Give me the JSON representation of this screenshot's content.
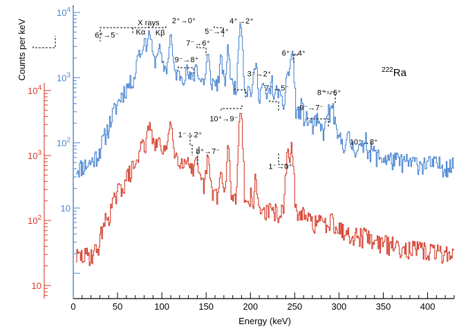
{
  "chart_data": {
    "type": "line",
    "style": "step histogram",
    "isotope": {
      "mass": "222",
      "symbol": "Ra"
    },
    "xlabel": "Energy (keV)",
    "ylabel": "Counts per keV",
    "xlim": [
      0,
      430
    ],
    "x_ticks": [
      "0",
      "50",
      "100",
      "150",
      "200",
      "250",
      "300",
      "350",
      "400"
    ],
    "colors": {
      "blue": "#4a86d1",
      "red": "#d43b2a",
      "axis": "#000000"
    },
    "blue_axis": {
      "color": "#4a86d1",
      "decade_labels": [
        {
          "base": "10",
          "exp": "4"
        },
        {
          "base": "10",
          "exp": "3"
        },
        {
          "base": "10",
          "exp": "2"
        },
        {
          "base": "10",
          "exp": ""
        }
      ]
    },
    "red_axis": {
      "color": "#d43b2a",
      "decade_labels": [
        {
          "base": "10",
          "exp": "4"
        },
        {
          "base": "10",
          "exp": "3"
        },
        {
          "base": "10",
          "exp": "2"
        },
        {
          "base": "10",
          "exp": ""
        }
      ]
    },
    "series": [
      {
        "name": "blue",
        "axis": "blue",
        "color": "#4a86d1",
        "noise_seed": 11,
        "background": [
          [
            3,
            40
          ],
          [
            12,
            45
          ],
          [
            20,
            50
          ],
          [
            28,
            68
          ],
          [
            35,
            120
          ],
          [
            40,
            180
          ],
          [
            45,
            280
          ],
          [
            50,
            400
          ],
          [
            55,
            560
          ],
          [
            60,
            700
          ],
          [
            65,
            850
          ],
          [
            70,
            1050
          ],
          [
            75,
            1250
          ],
          [
            80,
            1500
          ],
          [
            90,
            1800
          ],
          [
            100,
            1500
          ],
          [
            110,
            1300
          ],
          [
            120,
            1100
          ],
          [
            130,
            1000
          ],
          [
            140,
            930
          ],
          [
            150,
            880
          ],
          [
            160,
            840
          ],
          [
            170,
            800
          ],
          [
            180,
            760
          ],
          [
            190,
            700
          ],
          [
            200,
            650
          ],
          [
            210,
            580
          ],
          [
            220,
            500
          ],
          [
            230,
            430
          ],
          [
            240,
            370
          ],
          [
            250,
            320
          ],
          [
            260,
            250
          ],
          [
            270,
            190
          ],
          [
            280,
            160
          ],
          [
            290,
            140
          ],
          [
            300,
            115
          ],
          [
            310,
            95
          ],
          [
            320,
            85
          ],
          [
            330,
            75
          ],
          [
            340,
            65
          ],
          [
            350,
            58
          ],
          [
            360,
            55
          ],
          [
            370,
            52
          ],
          [
            380,
            50
          ],
          [
            400,
            48
          ],
          [
            420,
            45
          ],
          [
            430,
            44
          ]
        ],
        "peaks": [
          {
            "x": 74,
            "h": 1400,
            "w": 1.8
          },
          {
            "x": 80,
            "h": 2200,
            "w": 1.8
          },
          {
            "x": 86,
            "h": 3200,
            "w": 2.0
          },
          {
            "x": 96,
            "h": 1000,
            "w": 1.5
          },
          {
            "x": 98,
            "h": 700,
            "w": 1.3
          },
          {
            "x": 110,
            "h": 3200,
            "w": 1.5
          },
          {
            "x": 128,
            "h": 300,
            "w": 1.2
          },
          {
            "x": 139,
            "h": 700,
            "w": 1.4
          },
          {
            "x": 152,
            "h": 1300,
            "w": 1.4
          },
          {
            "x": 167,
            "h": 1100,
            "w": 1.4
          },
          {
            "x": 175,
            "h": 2000,
            "w": 1.4
          },
          {
            "x": 189,
            "h": 6500,
            "w": 1.6
          },
          {
            "x": 206,
            "h": 1000,
            "w": 1.5
          },
          {
            "x": 214,
            "h": 250,
            "w": 1.2
          },
          {
            "x": 224,
            "h": 400,
            "w": 1.6
          },
          {
            "x": 231,
            "h": 300,
            "w": 1.4
          },
          {
            "x": 242,
            "h": 900,
            "w": 1.5
          },
          {
            "x": 247,
            "h": 2200,
            "w": 1.6
          },
          {
            "x": 258,
            "h": 110,
            "w": 1.2
          },
          {
            "x": 275,
            "h": 50,
            "w": 1.2
          },
          {
            "x": 288,
            "h": 180,
            "w": 1.6
          },
          {
            "x": 293,
            "h": 240,
            "w": 1.6
          },
          {
            "x": 311,
            "h": 25,
            "w": 1.4
          },
          {
            "x": 330,
            "h": 55,
            "w": 1.5
          },
          {
            "x": 338,
            "h": 15,
            "w": 1.2
          }
        ]
      },
      {
        "name": "red",
        "axis": "red",
        "color": "#d43b2a",
        "noise_seed": 29,
        "background": [
          [
            3,
            28
          ],
          [
            12,
            28
          ],
          [
            20,
            30
          ],
          [
            26,
            35
          ],
          [
            30,
            45
          ],
          [
            33,
            85
          ],
          [
            36,
            95
          ],
          [
            40,
            120
          ],
          [
            45,
            180
          ],
          [
            50,
            270
          ],
          [
            55,
            330
          ],
          [
            60,
            450
          ],
          [
            65,
            580
          ],
          [
            70,
            740
          ],
          [
            75,
            880
          ],
          [
            80,
            1100
          ],
          [
            90,
            1400
          ],
          [
            100,
            1300
          ],
          [
            110,
            1150
          ],
          [
            120,
            900
          ],
          [
            130,
            700
          ],
          [
            140,
            450
          ],
          [
            150,
            330
          ],
          [
            160,
            270
          ],
          [
            170,
            240
          ],
          [
            180,
            220
          ],
          [
            190,
            200
          ],
          [
            200,
            165
          ],
          [
            210,
            150
          ],
          [
            220,
            140
          ],
          [
            230,
            135
          ],
          [
            240,
            130
          ],
          [
            250,
            120
          ],
          [
            260,
            105
          ],
          [
            270,
            98
          ],
          [
            280,
            92
          ],
          [
            290,
            85
          ],
          [
            300,
            75
          ],
          [
            310,
            68
          ],
          [
            320,
            60
          ],
          [
            330,
            54
          ],
          [
            340,
            50
          ],
          [
            350,
            45
          ],
          [
            360,
            42
          ],
          [
            370,
            40
          ],
          [
            380,
            37
          ],
          [
            400,
            34
          ],
          [
            420,
            32
          ],
          [
            430,
            30
          ]
        ],
        "peaks": [
          {
            "x": 78,
            "h": 900,
            "w": 1.7
          },
          {
            "x": 86,
            "h": 1800,
            "w": 1.9
          },
          {
            "x": 96,
            "h": 400,
            "w": 1.4
          },
          {
            "x": 110,
            "h": 2500,
            "w": 1.5
          },
          {
            "x": 130,
            "h": 300,
            "w": 1.2
          },
          {
            "x": 139,
            "h": 300,
            "w": 1.4
          },
          {
            "x": 152,
            "h": 600,
            "w": 1.4
          },
          {
            "x": 167,
            "h": 280,
            "w": 1.3
          },
          {
            "x": 175,
            "h": 1000,
            "w": 1.4
          },
          {
            "x": 189,
            "h": 5000,
            "w": 1.6
          },
          {
            "x": 200,
            "h": 80,
            "w": 1.3
          },
          {
            "x": 206,
            "h": 250,
            "w": 1.4
          },
          {
            "x": 242,
            "h": 1000,
            "w": 1.5
          },
          {
            "x": 247,
            "h": 1200,
            "w": 1.6
          },
          {
            "x": 258,
            "h": 40,
            "w": 1.2
          },
          {
            "x": 292,
            "h": 60,
            "w": 1.6
          },
          {
            "x": 330,
            "h": 20,
            "w": 1.4
          }
        ]
      }
    ],
    "annotations": [
      {
        "text": "6⁺→5⁻",
        "x": 38,
        "cy": 4550
      },
      {
        "text": "X rays",
        "x": 85,
        "cy": 7000
      },
      {
        "text": "Kα",
        "x": 76,
        "cy": 5050
      },
      {
        "text": "Kβ",
        "x": 98,
        "cy": 4900
      },
      {
        "text": "2⁺→0⁺",
        "x": 125,
        "cy": 7550
      },
      {
        "text": "5⁻→4⁺",
        "x": 162,
        "cy": 5200
      },
      {
        "text": "4⁺→2⁺",
        "x": 190,
        "cy": 7500
      },
      {
        "text": "7⁻→6⁺",
        "x": 141,
        "cy": 3400
      },
      {
        "text": "9⁻→8⁺",
        "x": 128,
        "cy": 1900
      },
      {
        "text": "6⁺→4⁺",
        "x": 249,
        "cy": 2400
      },
      {
        "text": "3⁻→2⁺",
        "x": 210,
        "cy": 1150
      },
      {
        "text": "7⁻→5⁻",
        "x": 230,
        "cy": 700
      },
      {
        "text": "8⁺→6⁺",
        "x": 289,
        "cy": 595
      },
      {
        "text": "9⁻→7⁻",
        "x": 269,
        "cy": 350
      },
      {
        "text": "10⁺→9⁻",
        "x": 170,
        "cy": 235
      },
      {
        "text": "1⁻→2⁺",
        "x": 132,
        "cy": 135
      },
      {
        "text": "8⁺→7⁻",
        "x": 152,
        "cy": 75
      },
      {
        "text": "10⁺→8⁺",
        "x": 328,
        "cy": 104
      },
      {
        "text": "1⁻→0⁺",
        "x": 234,
        "cy": 44
      }
    ]
  }
}
